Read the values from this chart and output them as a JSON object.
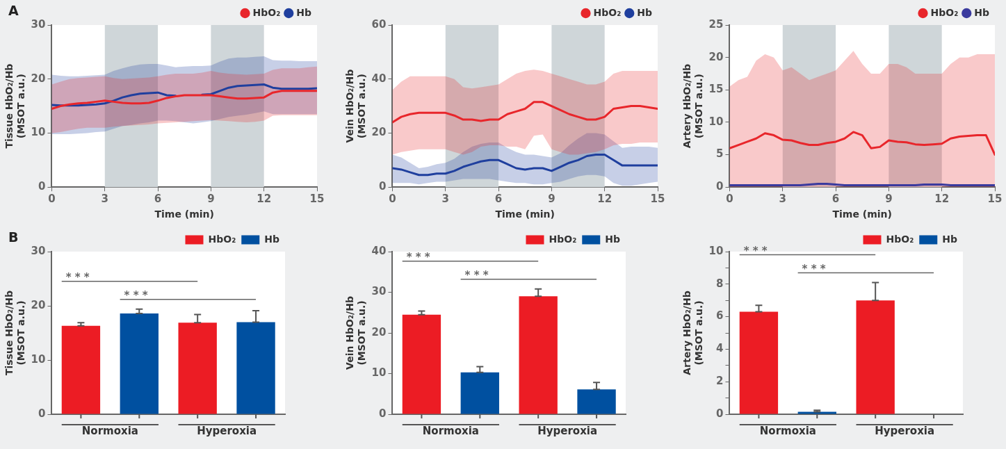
{
  "chart_data": [
    {
      "type": "line",
      "annotations": [
        "A"
      ],
      "ylabel": "Tissue HbO₂/Hb\n(MSOT a.u.)",
      "xlabel": "Time (min)",
      "xlim": [
        0,
        15
      ],
      "xticks": [
        0,
        3,
        6,
        9,
        12,
        15
      ],
      "ylim": [
        0,
        30
      ],
      "yticks": [
        0,
        10,
        20,
        30
      ],
      "legend": "top right",
      "grid": false,
      "marker": "none",
      "line_style": "solid",
      "x": [
        0,
        0.5,
        1,
        1.5,
        2,
        2.5,
        3,
        3.5,
        4,
        4.5,
        5,
        5.5,
        6,
        6.5,
        7,
        7.5,
        8,
        8.5,
        9,
        9.5,
        10,
        10.5,
        11,
        11.5,
        12,
        12.5,
        13,
        13.5,
        14,
        14.5,
        15
      ],
      "bands": [
        {
          "axis": "x",
          "from": 3,
          "to": 6,
          "color": "#cfd6d9"
        },
        {
          "axis": "x",
          "from": 9,
          "to": 12,
          "color": "#cfd6d9"
        }
      ],
      "series": [
        {
          "name": "HbO₂",
          "color": "#e8262b",
          "values": [
            14.5,
            15,
            15.3,
            15.5,
            15.6,
            15.8,
            16,
            15.8,
            15.6,
            15.5,
            15.5,
            15.6,
            16,
            16.5,
            16.8,
            17,
            17,
            17,
            17,
            16.8,
            16.6,
            16.4,
            16.4,
            16.5,
            16.6,
            17.5,
            17.8,
            17.8,
            17.8,
            17.8,
            17.8
          ],
          "upper": [
            19,
            19.5,
            20,
            20.2,
            20.3,
            20.4,
            20.5,
            20.2,
            20,
            20.1,
            20.2,
            20.3,
            20.5,
            20.8,
            21,
            21,
            21,
            21.2,
            21.5,
            21.2,
            21,
            20.9,
            20.8,
            20.9,
            21,
            21.7,
            22,
            22,
            22,
            22.2,
            22.3
          ],
          "lower": [
            10,
            10.2,
            10.5,
            10.8,
            11,
            11,
            11,
            11.2,
            11.3,
            11.4,
            11.5,
            11.6,
            11.8,
            11.9,
            12,
            12.1,
            12.2,
            12.3,
            12.4,
            12.3,
            12.2,
            12.1,
            12,
            12.1,
            12.3,
            13.2,
            13.3,
            13.3,
            13.3,
            13.3,
            13.3
          ]
        },
        {
          "name": "Hb",
          "color": "#1f3f9e",
          "values": [
            15.2,
            15.1,
            15.1,
            15.1,
            15.2,
            15.3,
            15.5,
            16,
            16.6,
            17,
            17.3,
            17.4,
            17.5,
            17,
            16.9,
            null,
            null,
            17.1,
            17.2,
            17.8,
            18.4,
            18.7,
            18.8,
            18.9,
            19,
            18.4,
            18.2,
            18.2,
            18.2,
            18.2,
            18.3
          ],
          "upper": [
            20.8,
            20.6,
            20.5,
            20.5,
            20.6,
            20.7,
            20.8,
            21.5,
            22,
            22.4,
            22.7,
            22.8,
            22.8,
            22.5,
            22.2,
            22.3,
            22.4,
            22.4,
            22.5,
            23.2,
            23.8,
            24,
            24,
            24.1,
            24.2,
            23.5,
            23.4,
            23.4,
            23.3,
            23.3,
            23.3
          ],
          "lower": [
            9.8,
            9.8,
            9.8,
            9.9,
            10,
            10.2,
            10.3,
            10.8,
            11.3,
            11.5,
            11.8,
            12,
            12.3,
            12.3,
            12.2,
            12,
            11.8,
            12,
            12.2,
            12.6,
            13,
            13.2,
            13.4,
            13.7,
            14,
            13.5,
            13.5,
            13.5,
            13.5,
            13.5,
            13.5
          ]
        }
      ]
    },
    {
      "type": "line",
      "ylabel": "Vein HbO₂/Hb\n(MSOT a.u.)",
      "xlabel": "Time (min)",
      "xlim": [
        0,
        15
      ],
      "xticks": [
        0,
        3,
        6,
        9,
        12,
        15
      ],
      "ylim": [
        0,
        60
      ],
      "yticks": [
        0,
        20,
        40,
        60
      ],
      "legend": "top right",
      "grid": false,
      "marker": "none",
      "line_style": "solid",
      "x": [
        0,
        0.5,
        1,
        1.5,
        2,
        2.5,
        3,
        3.5,
        4,
        4.5,
        5,
        5.5,
        6,
        6.5,
        7,
        7.5,
        8,
        8.5,
        9,
        9.5,
        10,
        10.5,
        11,
        11.5,
        12,
        12.5,
        13,
        13.5,
        14,
        14.5,
        15
      ],
      "bands": [
        {
          "axis": "x",
          "from": 3,
          "to": 6,
          "color": "#cfd6d9"
        },
        {
          "axis": "x",
          "from": 9,
          "to": 12,
          "color": "#cfd6d9"
        }
      ],
      "series": [
        {
          "name": "HbO₂",
          "color": "#e8262b",
          "values": [
            24,
            26,
            27,
            27.5,
            27.5,
            27.5,
            27.5,
            26.5,
            25,
            25,
            24.5,
            25,
            25,
            27,
            28,
            29,
            31.5,
            31.5,
            30,
            28.5,
            27,
            26,
            25,
            25,
            26,
            29,
            29.5,
            30,
            30,
            29.5,
            29
          ],
          "upper": [
            36,
            39,
            41,
            41,
            41,
            41,
            41,
            40,
            37,
            36.5,
            37,
            37.5,
            38,
            40,
            42,
            43,
            43.5,
            43,
            42,
            41,
            40,
            39,
            38,
            38,
            39,
            42,
            43,
            43,
            43,
            43,
            43
          ],
          "lower": [
            12,
            13,
            13.5,
            14,
            14,
            14,
            14,
            13,
            12,
            13,
            15,
            15.5,
            15.5,
            15,
            15,
            14,
            19,
            19.5,
            14,
            13,
            12,
            12,
            12.5,
            13,
            14,
            15.5,
            16,
            16,
            16.5,
            16.5,
            16.5
          ]
        },
        {
          "name": "Hb",
          "color": "#1f3f9e",
          "values": [
            7,
            6.5,
            5.5,
            4.5,
            4.5,
            5,
            5,
            6,
            7.5,
            8.5,
            9.5,
            10,
            10,
            8.5,
            7,
            6.5,
            7,
            7,
            6,
            7.5,
            9,
            10,
            11.5,
            12,
            12,
            10,
            8,
            8,
            8,
            8,
            8
          ],
          "upper": [
            12,
            11,
            9,
            7,
            7.5,
            8.5,
            9,
            10.5,
            13,
            15,
            16,
            16.5,
            16.5,
            14.5,
            13,
            12,
            12,
            11.5,
            11,
            12.5,
            15.5,
            18,
            20,
            20,
            19.5,
            17,
            14.5,
            15,
            15,
            15,
            14.5
          ],
          "lower": [
            1.5,
            1.5,
            1.5,
            1,
            1.5,
            2,
            2,
            2.5,
            3,
            3,
            3,
            3,
            2.5,
            2,
            1.5,
            1.5,
            1,
            1,
            1.5,
            2,
            3,
            4,
            4.5,
            4.5,
            4,
            1.5,
            0.5,
            0.5,
            1,
            1.5,
            2
          ]
        }
      ]
    },
    {
      "type": "line",
      "ylabel": "Artery HbO₂/Hb\n(MSOT a.u.)",
      "xlabel": "Time (min)",
      "xlim": [
        0,
        15
      ],
      "xticks": [
        0,
        3,
        6,
        9,
        12,
        15
      ],
      "ylim": [
        0,
        25
      ],
      "yticks": [
        0,
        5,
        10,
        15,
        20,
        25
      ],
      "legend": "top right",
      "grid": false,
      "marker": "none",
      "line_style": "solid",
      "x": [
        0,
        0.5,
        1,
        1.5,
        2,
        2.5,
        3,
        3.5,
        4,
        4.5,
        5,
        5.5,
        6,
        6.5,
        7,
        7.5,
        8,
        8.5,
        9,
        9.5,
        10,
        10.5,
        11,
        11.5,
        12,
        12.5,
        13,
        13.5,
        14,
        14.5,
        15
      ],
      "bands": [
        {
          "axis": "x",
          "from": 3,
          "to": 6,
          "color": "#cfd6d9"
        },
        {
          "axis": "x",
          "from": 9,
          "to": 12,
          "color": "#cfd6d9"
        }
      ],
      "series": [
        {
          "name": "HbO₂",
          "color": "#e8262b",
          "values": [
            6,
            6.5,
            7,
            7.5,
            8.3,
            8,
            7.3,
            7.2,
            6.8,
            6.5,
            6.5,
            6.8,
            7,
            7.5,
            8.5,
            8,
            6,
            6.2,
            7.2,
            7,
            6.9,
            6.6,
            6.5,
            6.6,
            6.7,
            7.5,
            7.8,
            7.9,
            8,
            8,
            5
          ],
          "upper": [
            15.5,
            16.5,
            17,
            19.5,
            20.5,
            20,
            18,
            18.5,
            17.5,
            16.5,
            17,
            17.5,
            18,
            19.5,
            21,
            19,
            17.5,
            17.5,
            19,
            19,
            18.5,
            17.5,
            17.5,
            17.5,
            17.5,
            19,
            20,
            20,
            20.5,
            20.5,
            20.5
          ],
          "lower": [
            0,
            0,
            0,
            0,
            0,
            0,
            0,
            0,
            0,
            0,
            0,
            0,
            0,
            0,
            0,
            0,
            0,
            0,
            0,
            0,
            0,
            0,
            0,
            0,
            0,
            0,
            0,
            0,
            0,
            0,
            0
          ]
        },
        {
          "name": "Hb",
          "color": "#3a3a9e",
          "values": [
            0.3,
            0.3,
            0.3,
            0.3,
            0.3,
            0.3,
            0.3,
            0.3,
            0.3,
            0.4,
            0.5,
            0.5,
            0.4,
            0.3,
            0.3,
            0.3,
            0.3,
            0.3,
            0.3,
            0.3,
            0.3,
            0.3,
            0.4,
            0.4,
            0.4,
            0.3,
            0.3,
            0.3,
            0.3,
            0.3,
            0.3
          ]
        }
      ]
    },
    {
      "type": "bar",
      "annotations": [
        "B",
        "* * *",
        "* * *"
      ],
      "ylabel": "Tissue HbO₂/Hb\n(MSOT a.u.)",
      "categories": [
        "Normoxia",
        "Hyperoxia"
      ],
      "ylim": [
        0,
        30
      ],
      "yticks": [
        0,
        10,
        20,
        30
      ],
      "legend": "top right",
      "grid": false,
      "series": [
        {
          "name": "HbO₂",
          "color": "#ec1c24",
          "values": [
            16.3,
            16.9
          ],
          "errors": [
            [
              16.3,
              16.9
            ],
            [
              16.9,
              18.4
            ]
          ]
        },
        {
          "name": "Hb",
          "color": "#0050a0",
          "values": [
            18.6,
            17.0
          ],
          "errors": [
            [
              18.6,
              19.4
            ],
            [
              17.0,
              19.1
            ]
          ]
        }
      ]
    },
    {
      "type": "bar",
      "ylabel": "Vein HbO₂/Hb\n(MSOT a.u.)",
      "annotations": [
        "* * *",
        "* * *"
      ],
      "categories": [
        "Normoxia",
        "Hyperoxia"
      ],
      "ylim": [
        0,
        40
      ],
      "yticks": [
        0,
        10,
        20,
        30,
        40
      ],
      "legend": "top right",
      "grid": false,
      "series": [
        {
          "name": "HbO₂",
          "color": "#ec1c24",
          "values": [
            24.5,
            29.0
          ],
          "errors": [
            [
              24.5,
              25.4
            ],
            [
              29.0,
              30.8
            ]
          ]
        },
        {
          "name": "Hb",
          "color": "#0050a0",
          "values": [
            10.3,
            6.1
          ],
          "errors": [
            [
              10.3,
              11.7
            ],
            [
              6.1,
              7.8
            ]
          ]
        }
      ]
    },
    {
      "type": "bar",
      "ylabel": "Artery HbO₂/Hb\n(MSOT a.u.)",
      "annotations": [
        "* * *",
        "* * *"
      ],
      "categories": [
        "Normoxia",
        "Hyperoxia"
      ],
      "ylim": [
        0,
        10
      ],
      "yticks": [
        0,
        {
          "value": 1,
          "label": null
        },
        2,
        {
          "value": 3,
          "label": null
        },
        4,
        {
          "value": 5,
          "label": null
        },
        6,
        {
          "value": 7,
          "label": null
        },
        8,
        {
          "value": 9,
          "label": null
        },
        10
      ],
      "legend": "top right",
      "grid": false,
      "series": [
        {
          "name": "HbO₂",
          "color": "#ec1c24",
          "values": [
            6.3,
            7.0
          ],
          "errors": [
            [
              6.3,
              6.7
            ],
            [
              7.0,
              8.1
            ]
          ]
        },
        {
          "name": "Hb",
          "color": "#0050a0",
          "values": [
            0.15,
            0
          ],
          "errors": [
            [
              0.15,
              0.25
            ],
            null
          ]
        }
      ]
    }
  ]
}
